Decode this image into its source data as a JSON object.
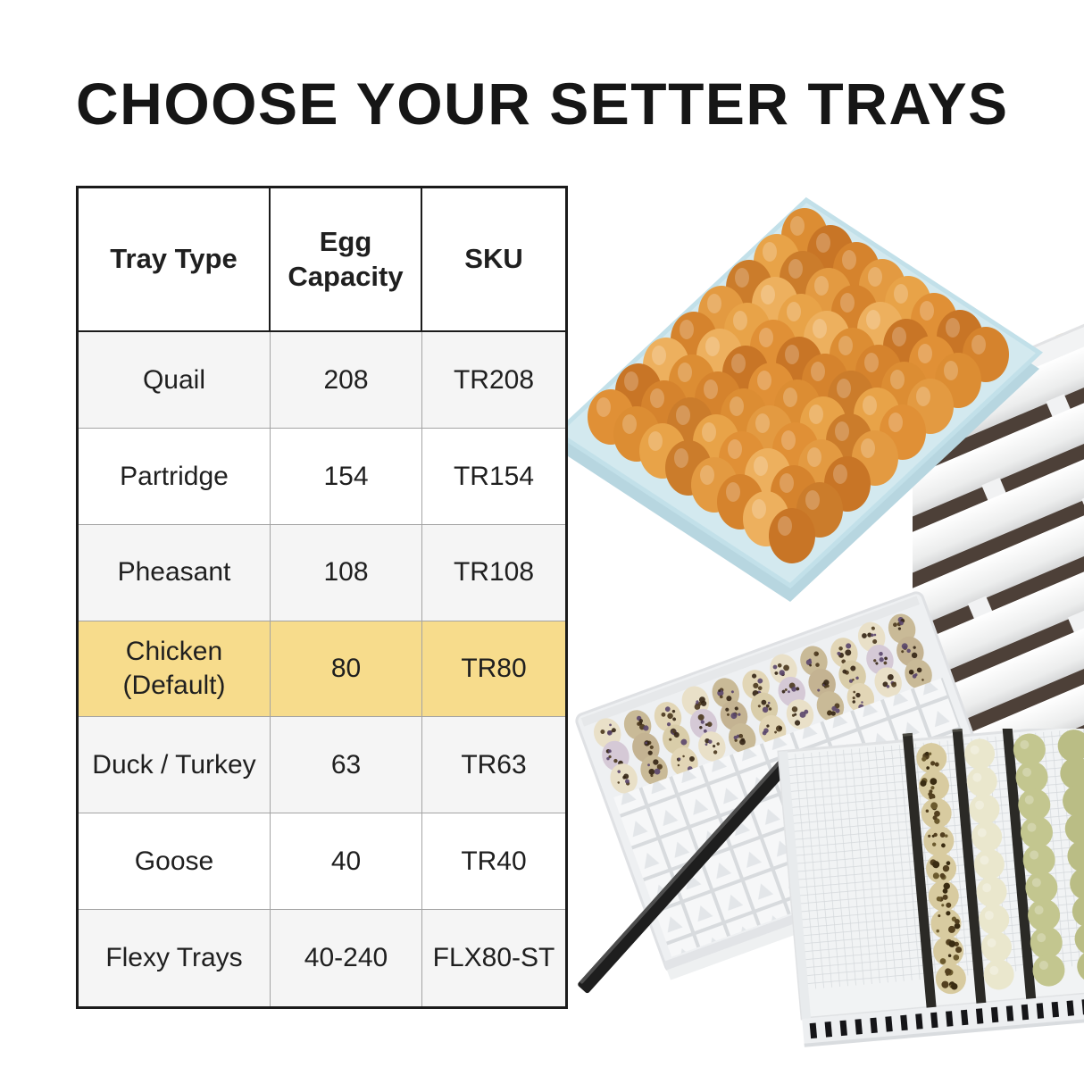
{
  "title": "CHOOSE YOUR SETTER TRAYS",
  "table": {
    "headers": [
      "Tray Type",
      "Egg Capacity",
      "SKU"
    ],
    "rows": [
      {
        "tray_type": "Quail",
        "egg_capacity": "208",
        "sku": "TR208",
        "highlighted": false
      },
      {
        "tray_type": "Partridge",
        "egg_capacity": "154",
        "sku": "TR154",
        "highlighted": false
      },
      {
        "tray_type": "Pheasant",
        "egg_capacity": "108",
        "sku": "TR108",
        "highlighted": false
      },
      {
        "tray_type": "Chicken (Default)",
        "egg_capacity": "80",
        "sku": "TR80",
        "highlighted": true
      },
      {
        "tray_type": "Duck / Turkey",
        "egg_capacity": "63",
        "sku": "TR63",
        "highlighted": false
      },
      {
        "tray_type": "Goose",
        "egg_capacity": "40",
        "sku": "TR40",
        "highlighted": false
      },
      {
        "tray_type": "Flexy Trays",
        "egg_capacity": "40-240",
        "sku": "FLX80-ST",
        "highlighted": false
      }
    ]
  },
  "colors": {
    "highlight_row": "#F7DC8C",
    "row_alt": "#F5F5F5",
    "row_plain": "#FFFFFF",
    "table_border_outer": "#1B1B1B",
    "table_border_inner": "#A3A3A3",
    "title_color": "#161616",
    "blue_tray": "#D3E9EF",
    "egg_brown": "#DD8F35",
    "quail_egg": "#D9CDA9",
    "olive_egg": "#C3C68F"
  },
  "photos": [
    {
      "name": "chicken-eggs-blue-tray",
      "description": "Brown chicken eggs in a light blue setter tray"
    },
    {
      "name": "slatted-setter-tray",
      "description": "White slatted setter tray with dark slots"
    },
    {
      "name": "quail-egg-cell-tray",
      "description": "White cell tray partly filled with speckled quail eggs"
    },
    {
      "name": "divider-rail",
      "description": "Black divider rail"
    },
    {
      "name": "flexy-tray-mixed-eggs",
      "description": "White flexy mesh tray with rows of quail, cream and olive eggs"
    }
  ]
}
